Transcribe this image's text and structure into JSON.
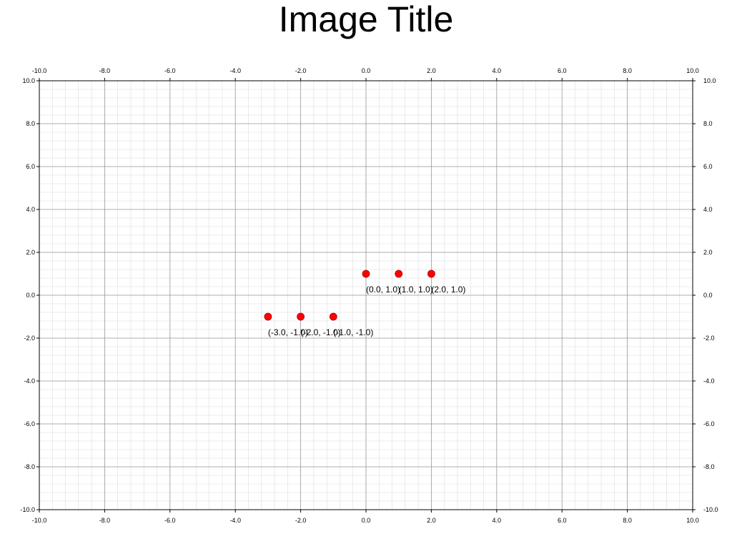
{
  "chart_data": {
    "type": "scatter",
    "title": "Image Title",
    "xlim": [
      -10,
      10
    ],
    "ylim": [
      -10,
      10
    ],
    "x_ticks": [
      "-10.0",
      "-8.0",
      "-6.0",
      "-4.0",
      "-2.0",
      "0.0",
      "2.0",
      "4.0",
      "6.0",
      "8.0",
      "10.0"
    ],
    "y_ticks": [
      "10.0",
      "8.0",
      "6.0",
      "4.0",
      "2.0",
      "0.0",
      "-2.0",
      "-4.0",
      "-6.0",
      "-8.0",
      "-10.0"
    ],
    "major_step": 2,
    "minor_step": 0.4,
    "grid": true,
    "point_color": "#ff0000",
    "points": [
      {
        "x": 0,
        "y": 1,
        "label": "(0.0, 1.0)"
      },
      {
        "x": 1,
        "y": 1,
        "label": "(1.0, 1.0)"
      },
      {
        "x": 2,
        "y": 1,
        "label": "(2.0, 1.0)"
      },
      {
        "x": -3,
        "y": -1,
        "label": "(-3.0, -1.0)"
      },
      {
        "x": -2,
        "y": -1,
        "label": "(-2.0, -1.0)"
      },
      {
        "x": -1,
        "y": -1,
        "label": "(-1.0, -1.0)"
      }
    ]
  }
}
